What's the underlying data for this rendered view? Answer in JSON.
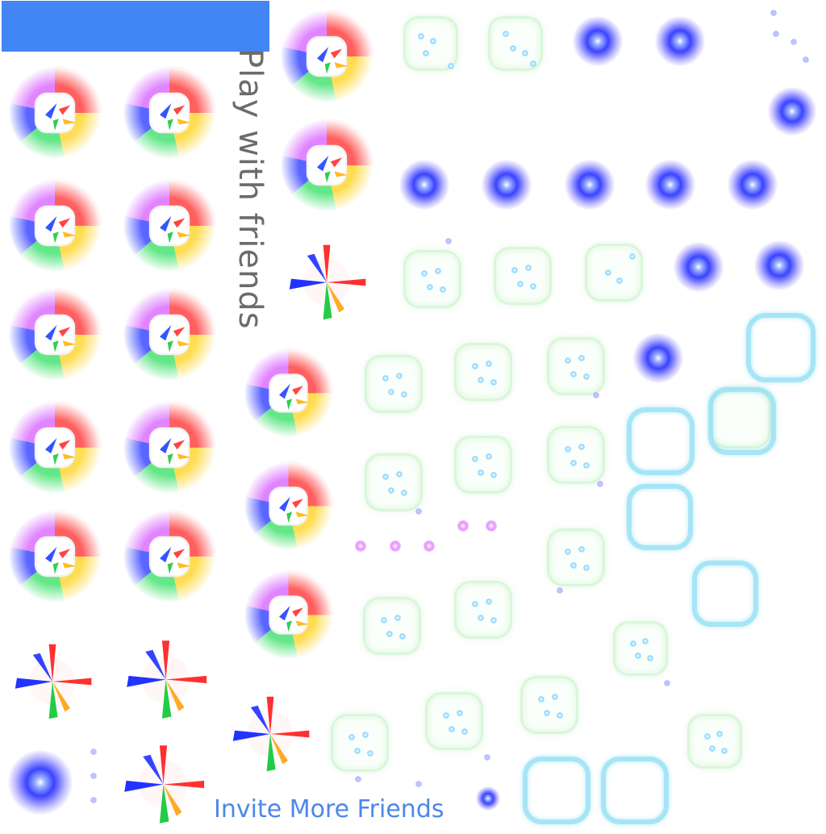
{
  "header": {
    "label": "Play with friends"
  },
  "footer": {
    "invite_label": "Invite More Friends"
  },
  "colors": {
    "banner": "#4285f4",
    "label_text": "#6b6b6b",
    "invite_text": "#4d87e8",
    "glow_core": "#3a43ff",
    "frame_ring": "#96e1f5",
    "dot_box_border": "#d7f5d7"
  },
  "icons": {
    "rainbow_face": "rainbow-burst-face-icon",
    "rainbow_star": "rainbow-star-burst-icon",
    "blue_glow": "blue-glow-sparkle-icon",
    "dot_box": "dotted-rounded-box-icon",
    "ring": "rounded-square-ring-icon",
    "pink_orb": "pink-orb-icon"
  }
}
